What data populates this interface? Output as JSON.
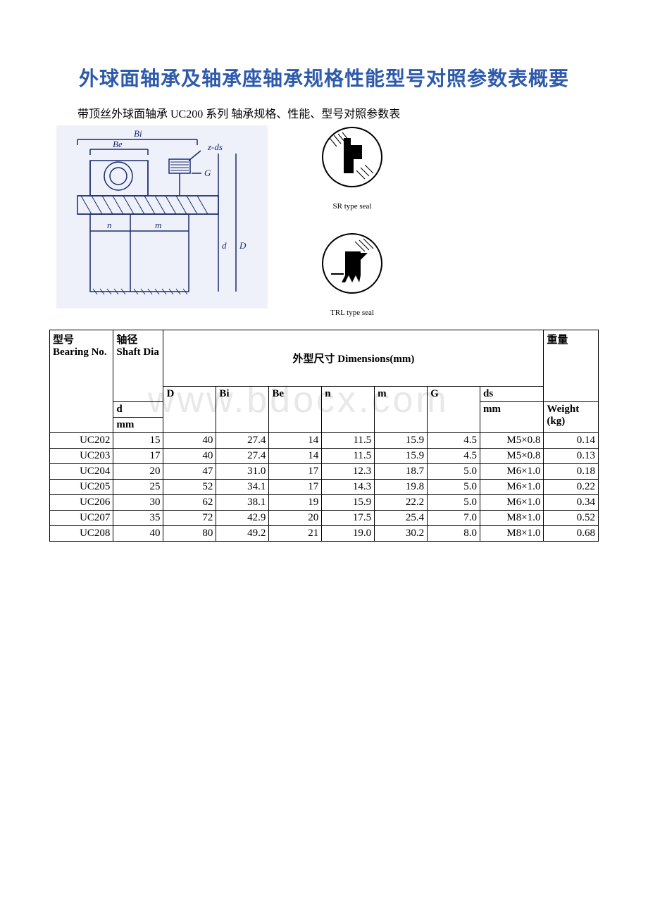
{
  "title": "外球面轴承及轴承座轴承规格性能型号对照参数表概要",
  "subtitle": "带顶丝外球面轴承 UC200 系列 轴承规格、性能、型号对照参数表",
  "seal1_label": "SR type seal",
  "seal2_label": "TRL type seal",
  "watermark": "www.bdocx.com",
  "headers": {
    "bearing": "型号\nBearing No.",
    "shaft_top": "轴径\nShaft Dia",
    "shaft_d": "d",
    "shaft_mm": "mm",
    "dims": "外型尺寸 Dimensions(mm)",
    "D": "D",
    "Bi": "Bi",
    "Be": "Be",
    "n": "n",
    "m": "m",
    "G": "G",
    "ds": "ds",
    "ds_mm": "mm",
    "weight_top": "重量",
    "weight": "Weight (kg)"
  },
  "rows": [
    {
      "no": "UC202",
      "d": "15",
      "D": "40",
      "Bi": "27.4",
      "Be": "14",
      "n": "11.5",
      "m": "15.9",
      "G": "4.5",
      "ds": "M5×0.8",
      "wt": "0.14"
    },
    {
      "no": "UC203",
      "d": "17",
      "D": "40",
      "Bi": "27.4",
      "Be": "14",
      "n": "11.5",
      "m": "15.9",
      "G": "4.5",
      "ds": "M5×0.8",
      "wt": "0.13"
    },
    {
      "no": "UC204",
      "d": "20",
      "D": "47",
      "Bi": "31.0",
      "Be": "17",
      "n": "12.3",
      "m": "18.7",
      "G": "5.0",
      "ds": "M6×1.0",
      "wt": "0.18"
    },
    {
      "no": "UC205",
      "d": "25",
      "D": "52",
      "Bi": "34.1",
      "Be": "17",
      "n": "14.3",
      "m": "19.8",
      "G": "5.0",
      "ds": "M6×1.0",
      "wt": "0.22"
    },
    {
      "no": "UC206",
      "d": "30",
      "D": "62",
      "Bi": "38.1",
      "Be": "19",
      "n": "15.9",
      "m": "22.2",
      "G": "5.0",
      "ds": "M6×1.0",
      "wt": "0.34"
    },
    {
      "no": "UC207",
      "d": "35",
      "D": "72",
      "Bi": "42.9",
      "Be": "20",
      "n": "17.5",
      "m": "25.4",
      "G": "7.0",
      "ds": "M8×1.0",
      "wt": "0.52"
    },
    {
      "no": "UC208",
      "d": "40",
      "D": "80",
      "Bi": "49.2",
      "Be": "21",
      "n": "19.0",
      "m": "30.2",
      "G": "8.0",
      "ds": "M8×1.0",
      "wt": "0.68"
    }
  ],
  "diagram": {
    "labels": {
      "Bi": "Bi",
      "Be": "Be",
      "zds": "z-ds",
      "G": "G",
      "n": "n",
      "m": "m",
      "d": "d",
      "D": "D"
    }
  }
}
